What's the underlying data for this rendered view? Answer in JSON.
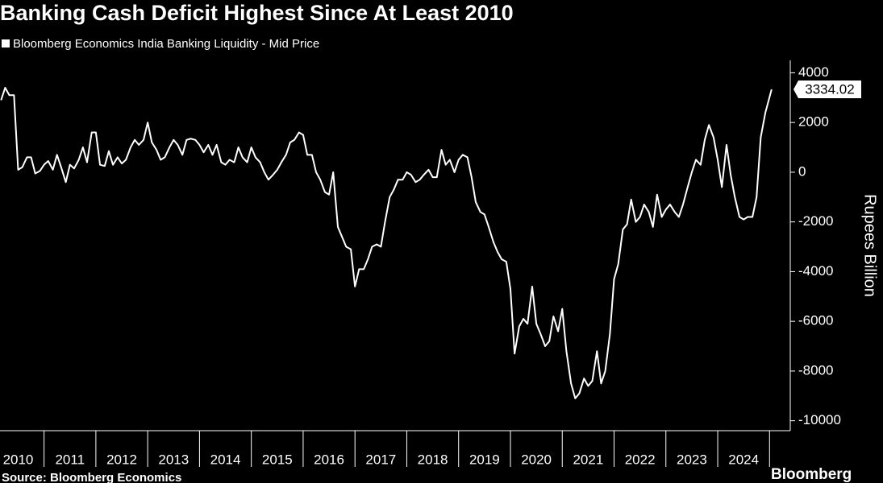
{
  "chart_data": {
    "type": "line",
    "title": "Banking Cash Deficit Highest Since At Least 2010",
    "y_label": "Rupees Billion",
    "source": "Source: Bloomberg Economics",
    "brand": "Bloomberg",
    "x": [
      2010.17,
      2010.25,
      2010.33,
      2010.42,
      2010.5,
      2010.58,
      2010.67,
      2010.75,
      2010.83,
      2010.92,
      2011.0,
      2011.08,
      2011.17,
      2011.25,
      2011.33,
      2011.42,
      2011.5,
      2011.58,
      2011.67,
      2011.75,
      2011.83,
      2011.92,
      2012.0,
      2012.08,
      2012.17,
      2012.25,
      2012.33,
      2012.42,
      2012.5,
      2012.58,
      2012.67,
      2012.75,
      2012.83,
      2012.92,
      2013.0,
      2013.08,
      2013.17,
      2013.25,
      2013.33,
      2013.42,
      2013.5,
      2013.58,
      2013.67,
      2013.75,
      2013.83,
      2013.92,
      2014.0,
      2014.08,
      2014.17,
      2014.25,
      2014.33,
      2014.42,
      2014.5,
      2014.58,
      2014.67,
      2014.75,
      2014.83,
      2014.92,
      2015.0,
      2015.08,
      2015.17,
      2015.25,
      2015.33,
      2015.42,
      2015.5,
      2015.58,
      2015.67,
      2015.75,
      2015.83,
      2015.92,
      2016.0,
      2016.08,
      2016.17,
      2016.25,
      2016.33,
      2016.42,
      2016.5,
      2016.58,
      2016.67,
      2016.75,
      2016.83,
      2016.92,
      2017.0,
      2017.08,
      2017.17,
      2017.25,
      2017.33,
      2017.42,
      2017.5,
      2017.58,
      2017.67,
      2017.75,
      2017.83,
      2017.92,
      2018.0,
      2018.08,
      2018.17,
      2018.25,
      2018.33,
      2018.42,
      2018.5,
      2018.58,
      2018.67,
      2018.75,
      2018.83,
      2018.92,
      2019.0,
      2019.08,
      2019.17,
      2019.25,
      2019.33,
      2019.42,
      2019.5,
      2019.58,
      2019.67,
      2019.75,
      2019.83,
      2019.92,
      2020.0,
      2020.08,
      2020.17,
      2020.25,
      2020.33,
      2020.42,
      2020.5,
      2020.58,
      2020.67,
      2020.75,
      2020.83,
      2020.92,
      2021.0,
      2021.08,
      2021.17,
      2021.25,
      2021.33,
      2021.42,
      2021.5,
      2021.58,
      2021.67,
      2021.75,
      2021.83,
      2021.92,
      2022.0,
      2022.08,
      2022.17,
      2022.25,
      2022.33,
      2022.42,
      2022.5,
      2022.58,
      2022.67,
      2022.75,
      2022.83,
      2022.92,
      2023.0,
      2023.08,
      2023.17,
      2023.25,
      2023.33,
      2023.42,
      2023.5,
      2023.58,
      2023.67,
      2023.75,
      2023.83,
      2023.92,
      2024.0,
      2024.08,
      2024.17,
      2024.25,
      2024.33,
      2024.42,
      2024.5,
      2024.58,
      2024.67,
      2024.75,
      2024.83,
      2024.92,
      2025.04
    ],
    "series": [
      {
        "name": "Bloomberg Economics India Banking Liquidity - Mid Price",
        "color": "#ffffff",
        "values": [
          2900,
          3400,
          3100,
          3100,
          100,
          200,
          600,
          600,
          -50,
          50,
          300,
          450,
          100,
          700,
          200,
          -400,
          300,
          150,
          500,
          1000,
          400,
          1600,
          1600,
          300,
          250,
          850,
          300,
          600,
          350,
          500,
          1000,
          1300,
          1100,
          1300,
          2000,
          1200,
          900,
          500,
          600,
          1000,
          1300,
          1100,
          700,
          1300,
          1350,
          1300,
          1100,
          800,
          1100,
          700,
          1100,
          400,
          300,
          500,
          400,
          1000,
          600,
          400,
          1000,
          600,
          400,
          0,
          -300,
          -100,
          100,
          400,
          700,
          1200,
          1300,
          1600,
          1500,
          700,
          700,
          0,
          -300,
          -800,
          -900,
          0,
          -2200,
          -2600,
          -3000,
          -3100,
          -4600,
          -3900,
          -3900,
          -3500,
          -3000,
          -2900,
          -3000,
          -2000,
          -1000,
          -700,
          -300,
          -300,
          0,
          -100,
          -400,
          -300,
          -100,
          100,
          -200,
          -200,
          900,
          300,
          500,
          0,
          500,
          700,
          600,
          -200,
          -1200,
          -1600,
          -1700,
          -2200,
          -2800,
          -3200,
          -3500,
          -3600,
          -4700,
          -7300,
          -6200,
          -5900,
          -6100,
          -4600,
          -6100,
          -6500,
          -7000,
          -6800,
          -5800,
          -6400,
          -5500,
          -7200,
          -8500,
          -9100,
          -8900,
          -8300,
          -8600,
          -8400,
          -7200,
          -8500,
          -8000,
          -6500,
          -4300,
          -3700,
          -2300,
          -2100,
          -1100,
          -2000,
          -1800,
          -1300,
          -1600,
          -2200,
          -900,
          -1800,
          -1500,
          -1300,
          -1600,
          -1800,
          -1300,
          -600,
          0,
          500,
          300,
          1300,
          1900,
          1400,
          500,
          -600,
          1100,
          -100,
          -1000,
          -1800,
          -1900,
          -1800,
          -1800,
          -1000,
          1400,
          2400,
          3334.02
        ]
      }
    ],
    "xlim": [
      2010.15,
      2025.4
    ],
    "xticks": [
      {
        "value": 2010.5,
        "label": "2010"
      },
      {
        "value": 2011.5,
        "label": "2011"
      },
      {
        "value": 2012.5,
        "label": "2012"
      },
      {
        "value": 2013.5,
        "label": "2013"
      },
      {
        "value": 2014.5,
        "label": "2014"
      },
      {
        "value": 2015.5,
        "label": "2015"
      },
      {
        "value": 2016.5,
        "label": "2016"
      },
      {
        "value": 2017.5,
        "label": "2017"
      },
      {
        "value": 2018.5,
        "label": "2018"
      },
      {
        "value": 2019.5,
        "label": "2019"
      },
      {
        "value": 2020.5,
        "label": "2020"
      },
      {
        "value": 2021.5,
        "label": "2021"
      },
      {
        "value": 2022.5,
        "label": "2022"
      },
      {
        "value": 2023.5,
        "label": "2023"
      },
      {
        "value": 2024.5,
        "label": "2024"
      }
    ],
    "ylim": [
      -10400,
      4500
    ],
    "yticks": [
      4000,
      2000,
      0,
      -2000,
      -4000,
      -6000,
      -8000,
      -10000
    ],
    "y_axis_side": "right",
    "grid": false
  }
}
